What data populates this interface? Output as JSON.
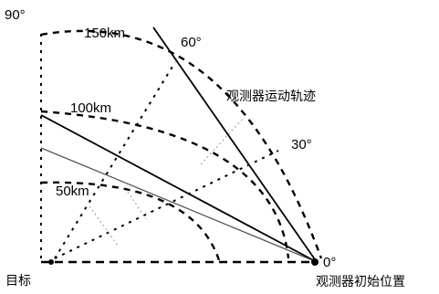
{
  "diagram": {
    "angles": {
      "deg_90": "90°",
      "deg_60": "60°",
      "deg_30": "30°",
      "deg_0": "0°"
    },
    "ranges": {
      "r150": "150km",
      "r100": "100km",
      "r50": "50km"
    },
    "labels": {
      "target": "目标",
      "trajectory": "观测器运动轨迹",
      "observer_start": "观测器初始位置"
    }
  }
}
